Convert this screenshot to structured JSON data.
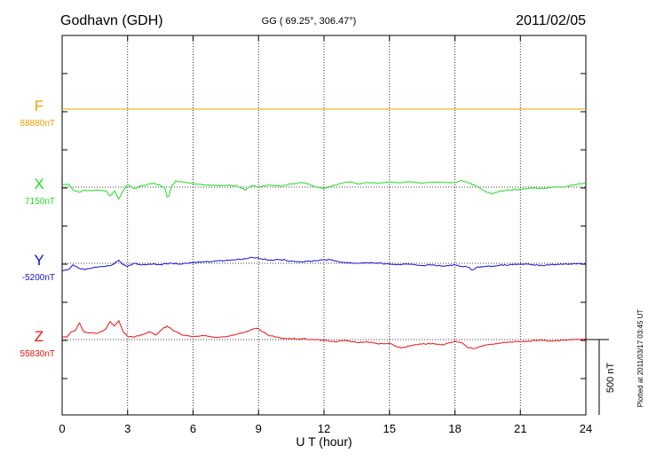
{
  "header": {
    "station": "Godhavn (GDH)",
    "coords": "GG ( 69.25°, 306.47°)",
    "date": "2011/02/05"
  },
  "plotted_note": "Plotted at 2011/03/17 03:45 UT",
  "scale_bar": {
    "label": "500 nT",
    "nT": 500
  },
  "chart_data": {
    "type": "line",
    "title": "",
    "xlabel": "U T (hour)",
    "ylabel": "",
    "xlim": [
      0,
      24
    ],
    "x_ticks": [
      0,
      3,
      6,
      9,
      12,
      15,
      18,
      21,
      24
    ],
    "grid": true,
    "series": [
      {
        "name": "F",
        "baseline_label": "88880nT",
        "baseline_nT": 88880,
        "color": "#f0a000",
        "points": [
          [
            0,
            0
          ],
          [
            24,
            0
          ]
        ]
      },
      {
        "name": "X",
        "baseline_label": "7150nT",
        "baseline_nT": 7150,
        "color": "#22dd22",
        "points": [
          [
            0,
            14
          ],
          [
            0.3,
            20
          ],
          [
            0.5,
            -20
          ],
          [
            0.8,
            -35
          ],
          [
            1.0,
            -20
          ],
          [
            1.3,
            -25
          ],
          [
            1.6,
            -20
          ],
          [
            2.0,
            -25
          ],
          [
            2.2,
            -60
          ],
          [
            2.4,
            -25
          ],
          [
            2.6,
            -80
          ],
          [
            2.8,
            -25
          ],
          [
            3.0,
            15
          ],
          [
            3.3,
            -10
          ],
          [
            3.7,
            12
          ],
          [
            4.2,
            25
          ],
          [
            4.5,
            10
          ],
          [
            4.7,
            0
          ],
          [
            4.8,
            -65
          ],
          [
            4.9,
            -55
          ],
          [
            5.0,
            0
          ],
          [
            5.2,
            40
          ],
          [
            5.6,
            30
          ],
          [
            6.0,
            25
          ],
          [
            6.5,
            15
          ],
          [
            7.0,
            10
          ],
          [
            7.5,
            12
          ],
          [
            8.0,
            10
          ],
          [
            8.4,
            -20
          ],
          [
            8.7,
            10
          ],
          [
            9.0,
            0
          ],
          [
            9.5,
            15
          ],
          [
            10.0,
            5
          ],
          [
            10.5,
            20
          ],
          [
            11.0,
            30
          ],
          [
            11.3,
            20
          ],
          [
            11.6,
            0
          ],
          [
            12.0,
            -10
          ],
          [
            12.3,
            5
          ],
          [
            12.8,
            25
          ],
          [
            13.2,
            35
          ],
          [
            13.6,
            20
          ],
          [
            14.0,
            30
          ],
          [
            14.5,
            25
          ],
          [
            15.0,
            35
          ],
          [
            15.5,
            30
          ],
          [
            16.0,
            35
          ],
          [
            16.5,
            25
          ],
          [
            17.0,
            32
          ],
          [
            17.5,
            30
          ],
          [
            18.0,
            30
          ],
          [
            18.3,
            45
          ],
          [
            18.6,
            30
          ],
          [
            19.0,
            5
          ],
          [
            19.4,
            -30
          ],
          [
            19.7,
            -45
          ],
          [
            20.0,
            -30
          ],
          [
            20.4,
            -20
          ],
          [
            21.0,
            -15
          ],
          [
            21.5,
            -5
          ],
          [
            22.0,
            -10
          ],
          [
            22.5,
            0
          ],
          [
            23.0,
            0
          ],
          [
            23.5,
            15
          ],
          [
            24.0,
            25
          ]
        ]
      },
      {
        "name": "Y",
        "baseline_label": "-5200nT",
        "baseline_nT": -5200,
        "color": "#1010dd",
        "points": [
          [
            0,
            -50
          ],
          [
            0.3,
            -40
          ],
          [
            0.5,
            -10
          ],
          [
            0.8,
            -35
          ],
          [
            1.1,
            -40
          ],
          [
            1.5,
            -25
          ],
          [
            2.0,
            -20
          ],
          [
            2.3,
            -10
          ],
          [
            2.6,
            20
          ],
          [
            2.8,
            -10
          ],
          [
            3.0,
            -20
          ],
          [
            3.3,
            0
          ],
          [
            3.6,
            -10
          ],
          [
            4.0,
            -5
          ],
          [
            4.5,
            -8
          ],
          [
            5.0,
            0
          ],
          [
            5.5,
            -5
          ],
          [
            6.0,
            5
          ],
          [
            6.5,
            10
          ],
          [
            7.0,
            15
          ],
          [
            7.5,
            20
          ],
          [
            8.0,
            25
          ],
          [
            8.4,
            30
          ],
          [
            8.7,
            40
          ],
          [
            9.0,
            35
          ],
          [
            9.5,
            20
          ],
          [
            10.0,
            25
          ],
          [
            10.5,
            15
          ],
          [
            11.0,
            10
          ],
          [
            11.5,
            15
          ],
          [
            12.0,
            25
          ],
          [
            12.4,
            20
          ],
          [
            12.7,
            10
          ],
          [
            13.0,
            5
          ],
          [
            13.5,
            0
          ],
          [
            14.0,
            5
          ],
          [
            14.5,
            0
          ],
          [
            15.0,
            -5
          ],
          [
            15.5,
            -10
          ],
          [
            16.0,
            -5
          ],
          [
            16.5,
            -15
          ],
          [
            17.0,
            -10
          ],
          [
            17.5,
            -20
          ],
          [
            18.0,
            -10
          ],
          [
            18.3,
            -20
          ],
          [
            18.6,
            -25
          ],
          [
            18.8,
            -45
          ],
          [
            19.0,
            -25
          ],
          [
            19.5,
            -20
          ],
          [
            20.0,
            -15
          ],
          [
            20.5,
            -10
          ],
          [
            21.0,
            -5
          ],
          [
            21.5,
            -10
          ],
          [
            22.0,
            -15
          ],
          [
            22.5,
            -8
          ],
          [
            23.0,
            -5
          ],
          [
            23.5,
            -3
          ],
          [
            24.0,
            -3
          ]
        ]
      },
      {
        "name": "Z",
        "baseline_label": "55830nT",
        "baseline_nT": 55830,
        "color": "#ee1111",
        "points": [
          [
            0,
            20
          ],
          [
            0.2,
            15
          ],
          [
            0.4,
            50
          ],
          [
            0.6,
            60
          ],
          [
            0.8,
            110
          ],
          [
            1.0,
            50
          ],
          [
            1.3,
            45
          ],
          [
            1.6,
            40
          ],
          [
            2.0,
            70
          ],
          [
            2.2,
            120
          ],
          [
            2.4,
            90
          ],
          [
            2.6,
            125
          ],
          [
            2.8,
            50
          ],
          [
            3.0,
            20
          ],
          [
            3.3,
            15
          ],
          [
            3.6,
            30
          ],
          [
            4.0,
            50
          ],
          [
            4.3,
            30
          ],
          [
            4.6,
            70
          ],
          [
            4.8,
            90
          ],
          [
            5.1,
            60
          ],
          [
            5.5,
            30
          ],
          [
            6.0,
            20
          ],
          [
            6.5,
            25
          ],
          [
            7.0,
            15
          ],
          [
            7.5,
            20
          ],
          [
            8.0,
            35
          ],
          [
            8.5,
            55
          ],
          [
            8.9,
            75
          ],
          [
            9.1,
            60
          ],
          [
            9.5,
            25
          ],
          [
            10.0,
            10
          ],
          [
            10.5,
            5
          ],
          [
            11.0,
            5
          ],
          [
            11.5,
            0
          ],
          [
            12.0,
            -5
          ],
          [
            12.5,
            -15
          ],
          [
            13.0,
            -5
          ],
          [
            13.5,
            -20
          ],
          [
            14.0,
            -15
          ],
          [
            14.5,
            -30
          ],
          [
            15.0,
            -25
          ],
          [
            15.5,
            -55
          ],
          [
            16.0,
            -40
          ],
          [
            16.5,
            -30
          ],
          [
            17.0,
            -25
          ],
          [
            17.5,
            -35
          ],
          [
            18.0,
            -10
          ],
          [
            18.3,
            -20
          ],
          [
            18.6,
            -55
          ],
          [
            18.9,
            -60
          ],
          [
            19.2,
            -45
          ],
          [
            19.5,
            -35
          ],
          [
            20.0,
            -25
          ],
          [
            20.5,
            -15
          ],
          [
            21.0,
            -15
          ],
          [
            21.5,
            -10
          ],
          [
            22.0,
            -5
          ],
          [
            22.5,
            -10
          ],
          [
            23.0,
            -5
          ],
          [
            23.5,
            0
          ],
          [
            24.0,
            5
          ]
        ]
      }
    ]
  }
}
